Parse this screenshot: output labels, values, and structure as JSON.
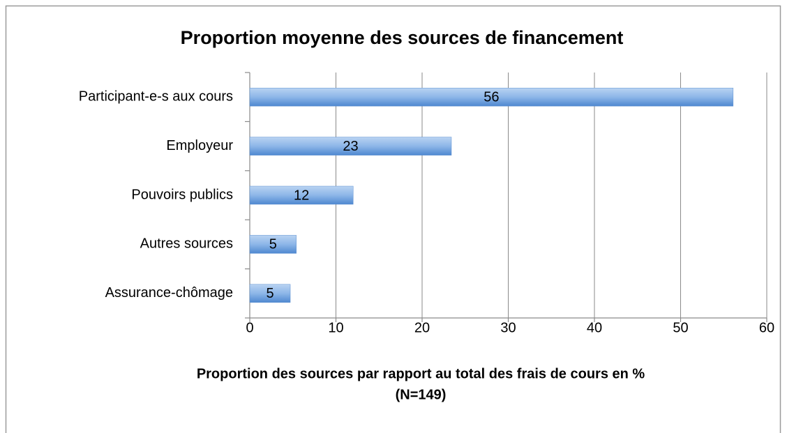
{
  "chart_data": {
    "type": "hbar",
    "title": "Proportion moyenne des sources de financement",
    "categories": [
      "Participant-e-s aux cours",
      "Employeur",
      "Pouvoirs publics",
      "Autres sources",
      "Assurance-chômage"
    ],
    "values": [
      56.1,
      23.4,
      12,
      5.4,
      4.7
    ],
    "value_labels": [
      "56",
      "23",
      "12",
      "5",
      "5"
    ],
    "color": "#5b93d8",
    "xlim": [
      0,
      60
    ],
    "xticks": [
      0,
      10,
      20,
      30,
      40,
      50,
      60
    ],
    "grid": true,
    "xlabel": [
      "Proportion des sources par rapport au total des frais de cours en  %",
      "(N=149)"
    ]
  }
}
